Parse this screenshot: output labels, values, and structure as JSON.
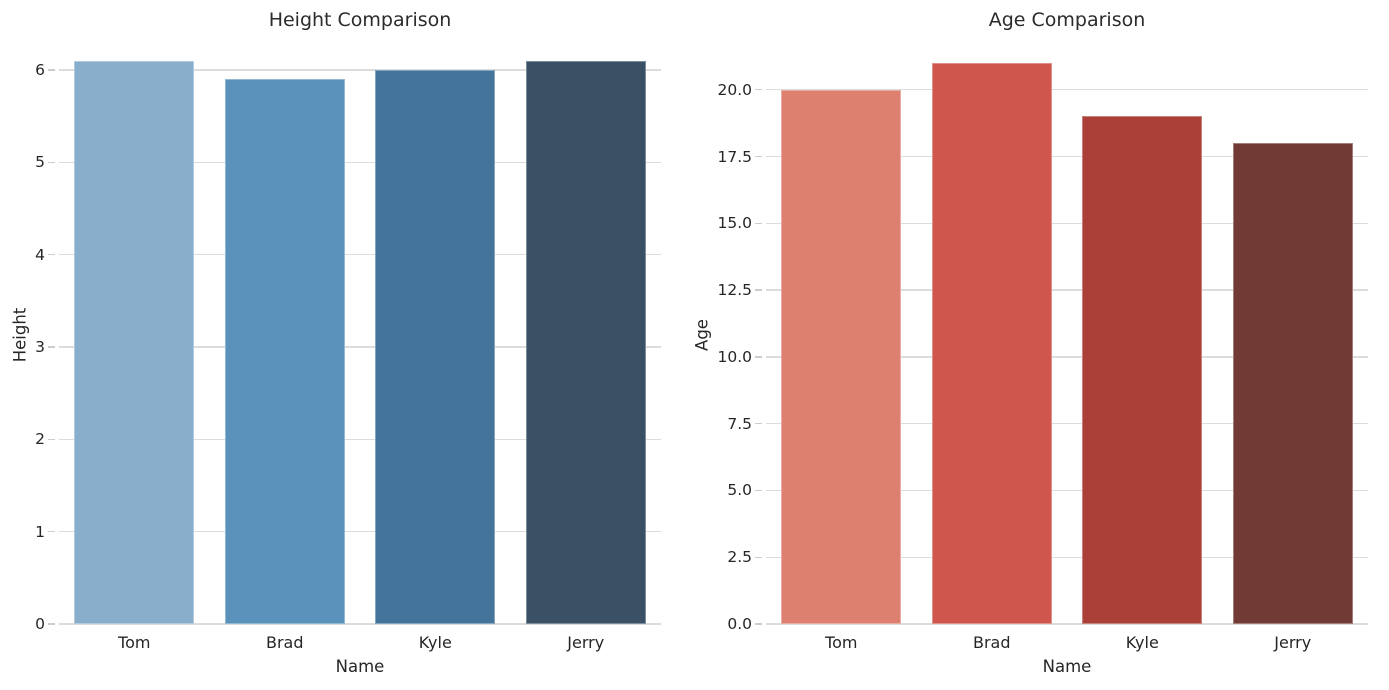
{
  "figure": {
    "background": "#ffffff",
    "text_color": "#262626",
    "grid_color": "#dcdcdc",
    "tick_color": "#cccccc"
  },
  "chart_data": [
    {
      "type": "bar",
      "title": "Height Comparison",
      "xlabel": "Name",
      "ylabel": "Height",
      "categories": [
        "Tom",
        "Brad",
        "Kyle",
        "Jerry"
      ],
      "values": [
        6.1,
        5.9,
        6.0,
        6.1
      ],
      "bar_colors": [
        "#89aecb",
        "#5a92bb",
        "#44749a",
        "#3a5064"
      ],
      "yticks": [
        0,
        1,
        2,
        3,
        4,
        5,
        6
      ],
      "ytick_labels": [
        "0",
        "1",
        "2",
        "3",
        "4",
        "5",
        "6"
      ],
      "ylim": [
        0,
        6.25
      ],
      "grid": true,
      "legend": null,
      "bar_width_fraction": 0.8
    },
    {
      "type": "bar",
      "title": "Age Comparison",
      "xlabel": "Name",
      "ylabel": "Age",
      "categories": [
        "Tom",
        "Brad",
        "Kyle",
        "Jerry"
      ],
      "values": [
        20,
        21,
        19,
        18
      ],
      "bar_colors": [
        "#de8070",
        "#ce564d",
        "#ab4038",
        "#713a34"
      ],
      "yticks": [
        0,
        2.5,
        5,
        7.5,
        10,
        12.5,
        15,
        17.5,
        20
      ],
      "ytick_labels": [
        "0.0",
        "2.5",
        "5.0",
        "7.5",
        "10.0",
        "12.5",
        "15.0",
        "17.5",
        "20.0"
      ],
      "ylim": [
        0,
        21.6
      ],
      "grid": true,
      "legend": null,
      "bar_width_fraction": 0.8
    }
  ]
}
